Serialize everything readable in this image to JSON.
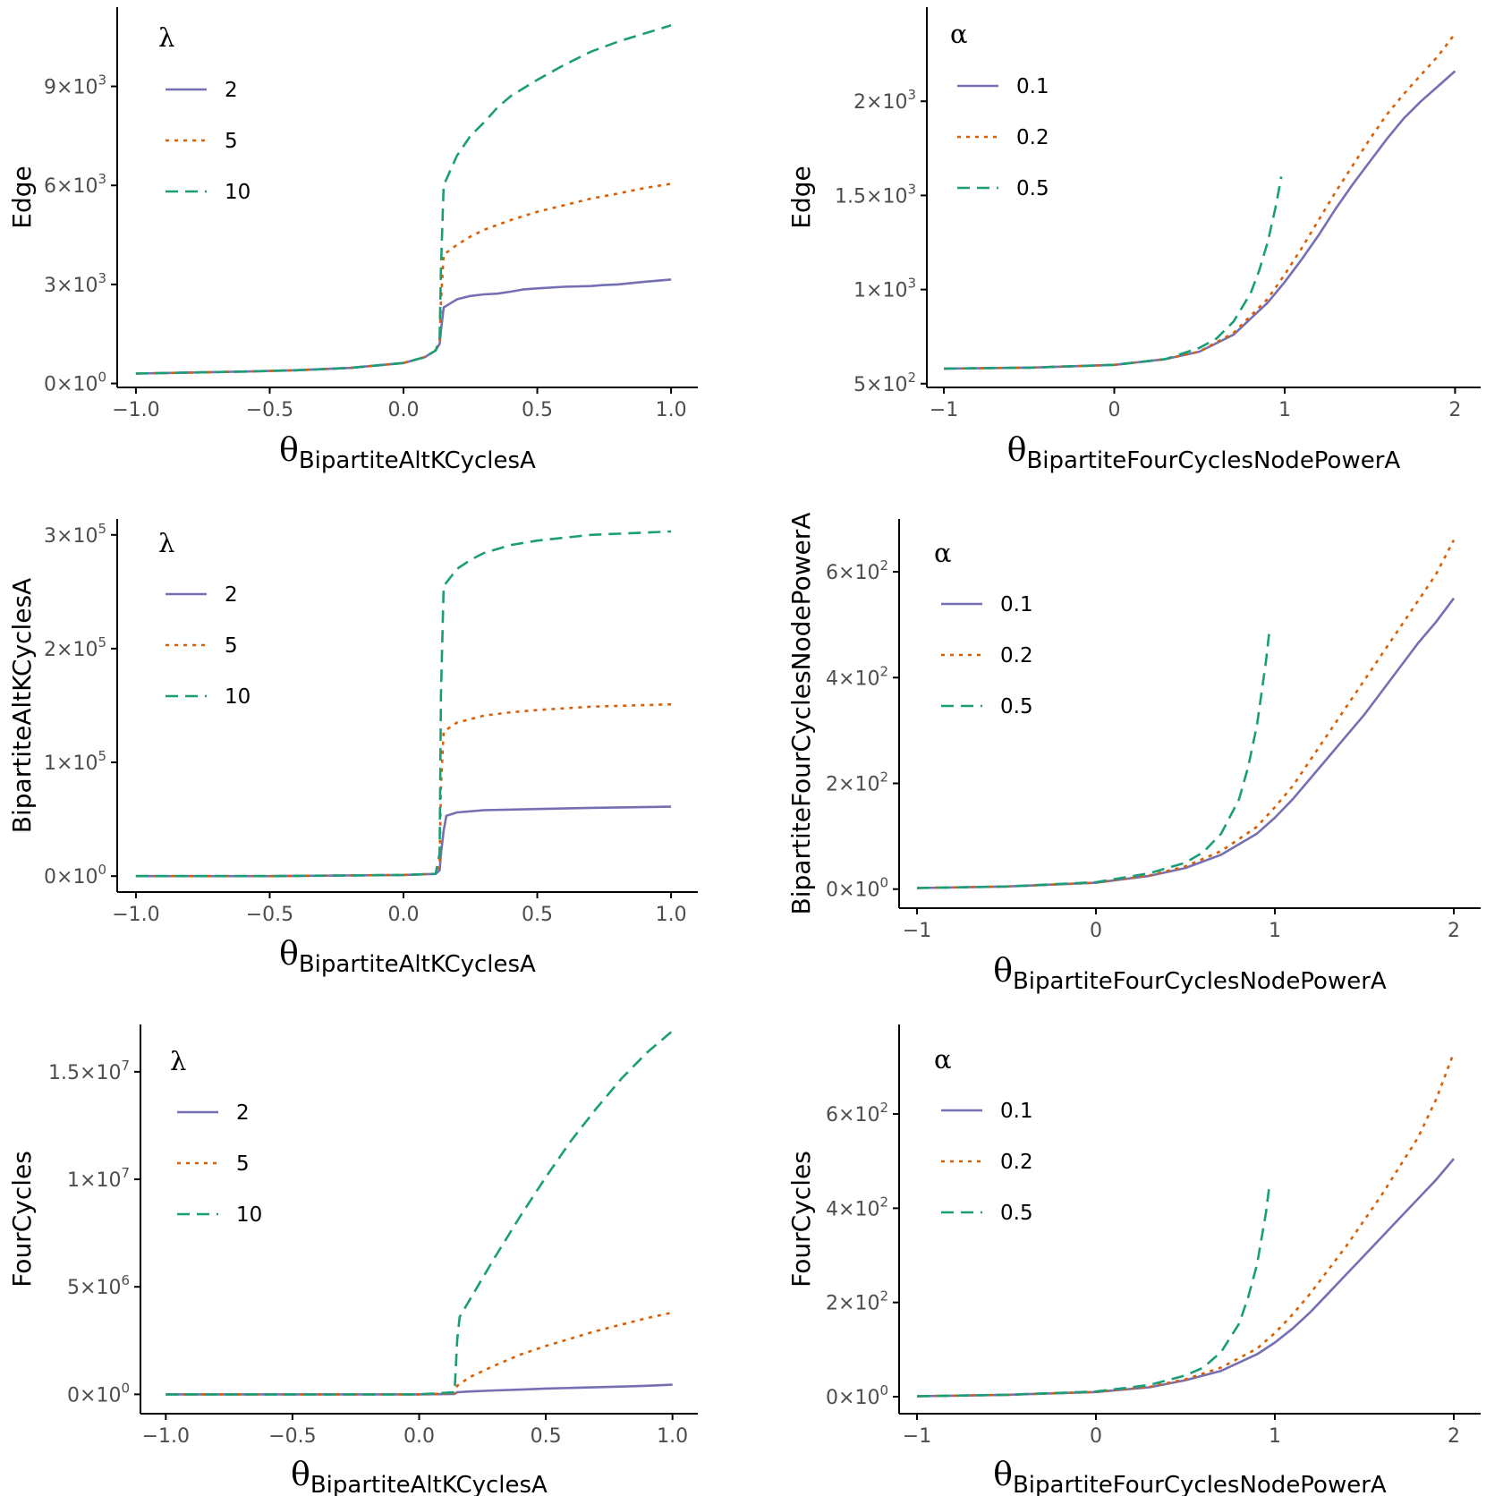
{
  "colors": {
    "series1": "#7570b3",
    "series2": "#d95f02",
    "series3": "#1b9e77",
    "axis": "#000000",
    "tick_label": "#4d4d4d"
  },
  "chart_data": [
    {
      "type": "line",
      "panel": "top-left",
      "ylabel": "Edge",
      "xlabel": "θ",
      "xlabel_sub": "BipartiteAltKCyclesA",
      "xlim": [
        -1.07,
        1.1
      ],
      "ylim": [
        -0.12,
        11.4
      ],
      "xticks": [
        -1.0,
        -0.5,
        0.0,
        0.5,
        1.0
      ],
      "xtick_labels": [
        "−1.0",
        "−0.5",
        "0.0",
        "0.5",
        "1.0"
      ],
      "yticks": [
        0,
        3,
        6,
        9
      ],
      "ytick_labels": [
        {
          "m": "0",
          "e": "0"
        },
        {
          "m": "3",
          "e": "3"
        },
        {
          "m": "6",
          "e": "3"
        },
        {
          "m": "9",
          "e": "3"
        }
      ],
      "y_unit_note": "y values in units of 10^3",
      "legend": {
        "title": "λ",
        "entries": [
          "2",
          "5",
          "10"
        ],
        "position": "top-left"
      },
      "series": [
        {
          "name": "2",
          "dash": "solid",
          "x": [
            -1,
            -0.8,
            -0.6,
            -0.4,
            -0.2,
            0,
            0.08,
            0.12,
            0.135,
            0.14,
            0.15,
            0.18,
            0.2,
            0.25,
            0.3,
            0.35,
            0.4,
            0.45,
            0.5,
            0.6,
            0.7,
            0.75,
            0.8,
            0.9,
            1.0
          ],
          "y": [
            0.3,
            0.33,
            0.36,
            0.4,
            0.47,
            0.62,
            0.8,
            1.0,
            1.2,
            1.6,
            2.3,
            2.45,
            2.55,
            2.65,
            2.7,
            2.72,
            2.78,
            2.85,
            2.88,
            2.93,
            2.95,
            2.98,
            3.0,
            3.08,
            3.15
          ]
        },
        {
          "name": "5",
          "dash": "dotted",
          "x": [
            -1,
            -0.8,
            -0.6,
            -0.4,
            -0.2,
            0,
            0.08,
            0.12,
            0.135,
            0.14,
            0.15,
            0.2,
            0.25,
            0.3,
            0.4,
            0.5,
            0.6,
            0.7,
            0.8,
            0.9,
            1.0
          ],
          "y": [
            0.3,
            0.33,
            0.36,
            0.4,
            0.47,
            0.62,
            0.8,
            1.0,
            1.3,
            2.5,
            3.9,
            4.2,
            4.45,
            4.65,
            4.95,
            5.2,
            5.4,
            5.6,
            5.75,
            5.92,
            6.05
          ]
        },
        {
          "name": "10",
          "dash": "dashed",
          "x": [
            -1,
            -0.8,
            -0.6,
            -0.4,
            -0.2,
            0,
            0.08,
            0.12,
            0.135,
            0.14,
            0.15,
            0.2,
            0.25,
            0.3,
            0.35,
            0.4,
            0.5,
            0.6,
            0.7,
            0.8,
            0.9,
            1.0
          ],
          "y": [
            0.3,
            0.33,
            0.36,
            0.4,
            0.47,
            0.62,
            0.8,
            1.0,
            1.3,
            3.5,
            6.0,
            6.9,
            7.5,
            7.9,
            8.35,
            8.7,
            9.2,
            9.65,
            10.05,
            10.35,
            10.6,
            10.85
          ]
        }
      ]
    },
    {
      "type": "line",
      "panel": "top-right",
      "ylabel": "Edge",
      "xlabel": "θ",
      "xlabel_sub": "BipartiteFourCyclesNodePowerA",
      "xlim": [
        -1.1,
        2.15
      ],
      "ylim": [
        0.48,
        2.5
      ],
      "xticks": [
        -1,
        0,
        1,
        2
      ],
      "xtick_labels": [
        "−1",
        "0",
        "1",
        "2"
      ],
      "yticks": [
        0.5,
        1.0,
        1.5,
        2.0
      ],
      "ytick_labels": [
        {
          "m": "5",
          "e": "2"
        },
        {
          "m": "1",
          "e": "3"
        },
        {
          "m": "1.5",
          "e": "3"
        },
        {
          "m": "2",
          "e": "3"
        }
      ],
      "y_unit_note": "y values in units of 10^3",
      "legend": {
        "title": "α",
        "entries": [
          "0.1",
          "0.2",
          "0.5"
        ],
        "position": "top-left"
      },
      "series": [
        {
          "name": "0.1",
          "dash": "solid",
          "x": [
            -1,
            -0.5,
            0,
            0.3,
            0.5,
            0.7,
            0.9,
            1.0,
            1.1,
            1.2,
            1.3,
            1.4,
            1.5,
            1.6,
            1.7,
            1.8,
            1.9,
            2.0
          ],
          "y": [
            0.58,
            0.585,
            0.6,
            0.63,
            0.67,
            0.76,
            0.93,
            1.04,
            1.16,
            1.29,
            1.43,
            1.56,
            1.68,
            1.8,
            1.91,
            2.0,
            2.08,
            2.16
          ]
        },
        {
          "name": "0.2",
          "dash": "dotted",
          "x": [
            -1,
            -0.5,
            0,
            0.3,
            0.5,
            0.7,
            0.9,
            1.0,
            1.1,
            1.2,
            1.3,
            1.4,
            1.5,
            1.6,
            1.7,
            1.8,
            1.9,
            2.0
          ],
          "y": [
            0.58,
            0.585,
            0.6,
            0.63,
            0.67,
            0.77,
            0.95,
            1.08,
            1.22,
            1.37,
            1.52,
            1.66,
            1.8,
            1.93,
            2.04,
            2.14,
            2.24,
            2.36
          ]
        },
        {
          "name": "0.5",
          "dash": "dashed",
          "x": [
            -1,
            -0.5,
            0,
            0.3,
            0.5,
            0.6,
            0.7,
            0.8,
            0.85,
            0.9,
            0.95,
            0.98
          ],
          "y": [
            0.58,
            0.585,
            0.6,
            0.63,
            0.69,
            0.74,
            0.83,
            0.98,
            1.1,
            1.25,
            1.45,
            1.6
          ]
        }
      ]
    },
    {
      "type": "line",
      "panel": "middle-left",
      "ylabel": "BipartiteAltKCyclesA",
      "xlabel": "θ",
      "xlabel_sub": "BipartiteAltKCyclesA",
      "xlim": [
        -1.07,
        1.1
      ],
      "ylim": [
        -0.14,
        3.14
      ],
      "xticks": [
        -1.0,
        -0.5,
        0.0,
        0.5,
        1.0
      ],
      "xtick_labels": [
        "−1.0",
        "−0.5",
        "0.0",
        "0.5",
        "1.0"
      ],
      "yticks": [
        0,
        1,
        2,
        3
      ],
      "ytick_labels": [
        {
          "m": "0",
          "e": "0"
        },
        {
          "m": "1",
          "e": "5"
        },
        {
          "m": "2",
          "e": "5"
        },
        {
          "m": "3",
          "e": "5"
        }
      ],
      "y_unit_note": "y values in units of 10^5",
      "legend": {
        "title": "λ",
        "entries": [
          "2",
          "5",
          "10"
        ],
        "position": "top-left"
      },
      "series": [
        {
          "name": "2",
          "dash": "solid",
          "x": [
            -1,
            -0.5,
            0,
            0.12,
            0.135,
            0.14,
            0.15,
            0.16,
            0.2,
            0.3,
            0.5,
            0.7,
            1.0
          ],
          "y": [
            0.0,
            0.0,
            0.01,
            0.02,
            0.05,
            0.2,
            0.4,
            0.53,
            0.56,
            0.58,
            0.59,
            0.6,
            0.61
          ]
        },
        {
          "name": "5",
          "dash": "dotted",
          "x": [
            -1,
            -0.5,
            0,
            0.12,
            0.135,
            0.14,
            0.15,
            0.2,
            0.3,
            0.4,
            0.5,
            0.7,
            1.0
          ],
          "y": [
            0.0,
            0.0,
            0.01,
            0.02,
            0.1,
            0.8,
            1.27,
            1.35,
            1.41,
            1.44,
            1.46,
            1.49,
            1.51
          ]
        },
        {
          "name": "10",
          "dash": "dashed",
          "x": [
            -1,
            -0.5,
            0,
            0.12,
            0.135,
            0.14,
            0.15,
            0.2,
            0.25,
            0.3,
            0.4,
            0.5,
            0.7,
            1.0
          ],
          "y": [
            0.0,
            0.0,
            0.01,
            0.02,
            0.2,
            1.6,
            2.55,
            2.7,
            2.78,
            2.84,
            2.91,
            2.95,
            3.0,
            3.03
          ]
        }
      ]
    },
    {
      "type": "line",
      "panel": "middle-right",
      "ylabel": "BipartiteFourCyclesNodePowerA",
      "xlabel": "θ",
      "xlabel_sub": "BipartiteFourCyclesNodePowerA",
      "xlim": [
        -1.1,
        2.15
      ],
      "ylim": [
        -0.36,
        7.0
      ],
      "xticks": [
        -1,
        0,
        1,
        2
      ],
      "xtick_labels": [
        "−1",
        "0",
        "1",
        "2"
      ],
      "yticks": [
        0,
        2,
        4,
        6
      ],
      "ytick_labels": [
        {
          "m": "0",
          "e": "0"
        },
        {
          "m": "2",
          "e": "2"
        },
        {
          "m": "4",
          "e": "2"
        },
        {
          "m": "6",
          "e": "2"
        }
      ],
      "y_unit_note": "y values in units of 10^2",
      "legend": {
        "title": "α",
        "entries": [
          "0.1",
          "0.2",
          "0.5"
        ],
        "position": "top-left"
      },
      "series": [
        {
          "name": "0.1",
          "dash": "solid",
          "x": [
            -1,
            -0.5,
            0,
            0.3,
            0.5,
            0.7,
            0.9,
            1.0,
            1.1,
            1.2,
            1.3,
            1.4,
            1.5,
            1.6,
            1.7,
            1.8,
            1.9,
            2.0
          ],
          "y": [
            0.02,
            0.05,
            0.12,
            0.25,
            0.4,
            0.65,
            1.05,
            1.35,
            1.7,
            2.1,
            2.5,
            2.9,
            3.3,
            3.75,
            4.2,
            4.65,
            5.05,
            5.5
          ]
        },
        {
          "name": "0.2",
          "dash": "dotted",
          "x": [
            -1,
            -0.5,
            0,
            0.3,
            0.5,
            0.7,
            0.9,
            1.0,
            1.1,
            1.2,
            1.3,
            1.4,
            1.5,
            1.6,
            1.7,
            1.8,
            1.9,
            2.0
          ],
          "y": [
            0.02,
            0.05,
            0.12,
            0.26,
            0.43,
            0.72,
            1.18,
            1.55,
            1.95,
            2.45,
            2.95,
            3.45,
            3.95,
            4.45,
            4.95,
            5.45,
            5.95,
            6.6
          ]
        },
        {
          "name": "0.5",
          "dash": "dashed",
          "x": [
            -1,
            -0.5,
            0,
            0.3,
            0.5,
            0.6,
            0.7,
            0.8,
            0.85,
            0.9,
            0.95,
            0.97
          ],
          "y": [
            0.02,
            0.05,
            0.13,
            0.3,
            0.5,
            0.7,
            1.05,
            1.7,
            2.3,
            3.1,
            4.3,
            4.9
          ]
        }
      ]
    },
    {
      "type": "line",
      "panel": "bottom-left",
      "ylabel": "FourCycles",
      "xlabel": "θ",
      "xlabel_sub": "BipartiteAltKCyclesA",
      "xlim": [
        -1.1,
        1.1
      ],
      "ylim": [
        -0.9,
        17.2
      ],
      "xticks": [
        -1.0,
        -0.5,
        0.0,
        0.5,
        1.0
      ],
      "xtick_labels": [
        "−1.0",
        "−0.5",
        "0.0",
        "0.5",
        "1.0"
      ],
      "yticks": [
        0,
        5,
        10,
        15
      ],
      "ytick_labels": [
        {
          "m": "0",
          "e": "0"
        },
        {
          "m": "5",
          "e": "6"
        },
        {
          "m": "1",
          "e": "7"
        },
        {
          "m": "1.5",
          "e": "7"
        }
      ],
      "y_unit_note": "y values in units of 10^6",
      "legend": {
        "title": "λ",
        "entries": [
          "2",
          "5",
          "10"
        ],
        "position": "top-left"
      },
      "series": [
        {
          "name": "2",
          "dash": "solid",
          "x": [
            -1,
            -0.5,
            0,
            0.14,
            0.15,
            0.2,
            0.3,
            0.4,
            0.5,
            0.6,
            0.7,
            0.8,
            0.9,
            1.0
          ],
          "y": [
            0.0,
            0.0,
            0.0,
            0.02,
            0.1,
            0.13,
            0.18,
            0.22,
            0.27,
            0.3,
            0.33,
            0.36,
            0.4,
            0.45
          ]
        },
        {
          "name": "5",
          "dash": "dotted",
          "x": [
            -1,
            -0.5,
            0,
            0.14,
            0.15,
            0.2,
            0.3,
            0.4,
            0.5,
            0.6,
            0.7,
            0.8,
            0.9,
            1.0
          ],
          "y": [
            0.0,
            0.0,
            0.0,
            0.05,
            0.4,
            0.8,
            1.35,
            1.85,
            2.25,
            2.6,
            2.95,
            3.25,
            3.55,
            3.8
          ]
        },
        {
          "name": "10",
          "dash": "dashed",
          "x": [
            -1,
            -0.5,
            0,
            0.14,
            0.15,
            0.16,
            0.2,
            0.25,
            0.3,
            0.4,
            0.5,
            0.6,
            0.7,
            0.8,
            0.9,
            1.0
          ],
          "y": [
            0.0,
            0.0,
            0.0,
            0.1,
            2.5,
            3.6,
            4.4,
            5.4,
            6.4,
            8.3,
            10.1,
            11.8,
            13.3,
            14.7,
            15.9,
            16.9
          ]
        }
      ]
    },
    {
      "type": "line",
      "panel": "bottom-right",
      "ylabel": "FourCycles",
      "xlabel": "θ",
      "xlabel_sub": "BipartiteFourCyclesNodePowerA",
      "xlim": [
        -1.1,
        2.15
      ],
      "ylim": [
        -0.36,
        7.9
      ],
      "xticks": [
        -1,
        0,
        1,
        2
      ],
      "xtick_labels": [
        "−1",
        "0",
        "1",
        "2"
      ],
      "yticks": [
        0,
        2,
        4,
        6
      ],
      "ytick_labels": [
        {
          "m": "0",
          "e": "0"
        },
        {
          "m": "2",
          "e": "2"
        },
        {
          "m": "4",
          "e": "2"
        },
        {
          "m": "6",
          "e": "2"
        }
      ],
      "y_unit_note": "y values in units of 10^2",
      "legend": {
        "title": "α",
        "entries": [
          "0.1",
          "0.2",
          "0.5"
        ],
        "position": "top-left"
      },
      "series": [
        {
          "name": "0.1",
          "dash": "solid",
          "x": [
            -1,
            -0.5,
            0,
            0.3,
            0.5,
            0.7,
            0.9,
            1.0,
            1.1,
            1.2,
            1.3,
            1.4,
            1.5,
            1.6,
            1.7,
            1.8,
            1.9,
            2.0
          ],
          "y": [
            0.01,
            0.04,
            0.1,
            0.2,
            0.35,
            0.55,
            0.9,
            1.15,
            1.45,
            1.8,
            2.2,
            2.6,
            3.0,
            3.4,
            3.8,
            4.2,
            4.6,
            5.05
          ]
        },
        {
          "name": "0.2",
          "dash": "dotted",
          "x": [
            -1,
            -0.5,
            0,
            0.3,
            0.5,
            0.7,
            0.9,
            1.0,
            1.1,
            1.2,
            1.3,
            1.4,
            1.5,
            1.6,
            1.7,
            1.8,
            1.9,
            2.0
          ],
          "y": [
            0.01,
            0.04,
            0.1,
            0.21,
            0.37,
            0.62,
            1.02,
            1.35,
            1.75,
            2.2,
            2.7,
            3.2,
            3.75,
            4.3,
            4.9,
            5.5,
            6.3,
            7.3
          ]
        },
        {
          "name": "0.5",
          "dash": "dashed",
          "x": [
            -1,
            -0.5,
            0,
            0.3,
            0.5,
            0.6,
            0.7,
            0.8,
            0.85,
            0.9,
            0.95,
            0.97
          ],
          "y": [
            0.01,
            0.04,
            0.11,
            0.25,
            0.45,
            0.62,
            0.95,
            1.55,
            2.1,
            2.8,
            3.9,
            4.5
          ]
        }
      ]
    }
  ]
}
